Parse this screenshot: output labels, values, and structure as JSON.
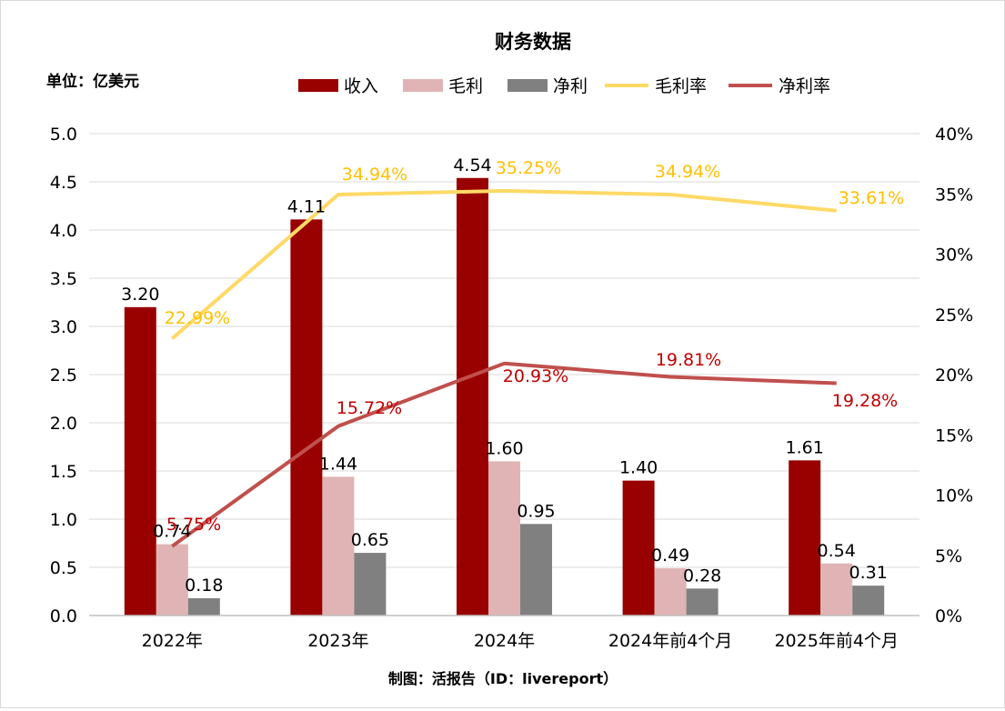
{
  "chart_data": {
    "type": "bar+line",
    "title": "财务数据",
    "unit_label": "单位：亿美元",
    "credit": "制图：活报告（ID：livereport）",
    "categories": [
      "2022年",
      "2023年",
      "2024年",
      "2024年前4个月",
      "2025年前4个月"
    ],
    "left_axis": {
      "min": 0,
      "max": 5,
      "step": 0.5,
      "ticks": [
        "0.0",
        "0.5",
        "1.0",
        "1.5",
        "2.0",
        "2.5",
        "3.0",
        "3.5",
        "4.0",
        "4.5",
        "5.0"
      ]
    },
    "right_axis": {
      "min": 0,
      "max": 40,
      "step": 5,
      "ticks": [
        "0%",
        "5%",
        "10%",
        "15%",
        "20%",
        "25%",
        "30%",
        "35%",
        "40%"
      ]
    },
    "grid": true,
    "legend_position": "top",
    "bar_series": [
      {
        "name": "收入",
        "color": "#990000",
        "values": [
          3.2,
          4.11,
          4.54,
          1.4,
          1.61
        ],
        "labels": [
          "3.20",
          "4.11",
          "4.54",
          "1.40",
          "1.61"
        ]
      },
      {
        "name": "毛利",
        "color": "#e0b4b4",
        "values": [
          0.74,
          1.44,
          1.6,
          0.49,
          0.54
        ],
        "labels": [
          "0.74",
          "1.44",
          "1.60",
          "0.49",
          "0.54"
        ]
      },
      {
        "name": "净利",
        "color": "#808080",
        "values": [
          0.18,
          0.65,
          0.95,
          0.28,
          0.31
        ],
        "labels": [
          "0.18",
          "0.65",
          "0.95",
          "0.28",
          "0.31"
        ]
      }
    ],
    "line_series": [
      {
        "name": "毛利率",
        "color": "#ffd966",
        "label_color": "#ffc000",
        "values": [
          22.99,
          34.94,
          35.25,
          34.94,
          33.61
        ],
        "labels": [
          "22.99%",
          "34.94%",
          "35.25%",
          "34.94%",
          "33.61%"
        ]
      },
      {
        "name": "净利率",
        "color": "#c0504d",
        "label_color": "#c00000",
        "values": [
          5.75,
          15.72,
          20.93,
          19.81,
          19.28
        ],
        "labels": [
          "5.75%",
          "15.72%",
          "20.93%",
          "19.81%",
          "19.28%"
        ]
      }
    ]
  }
}
